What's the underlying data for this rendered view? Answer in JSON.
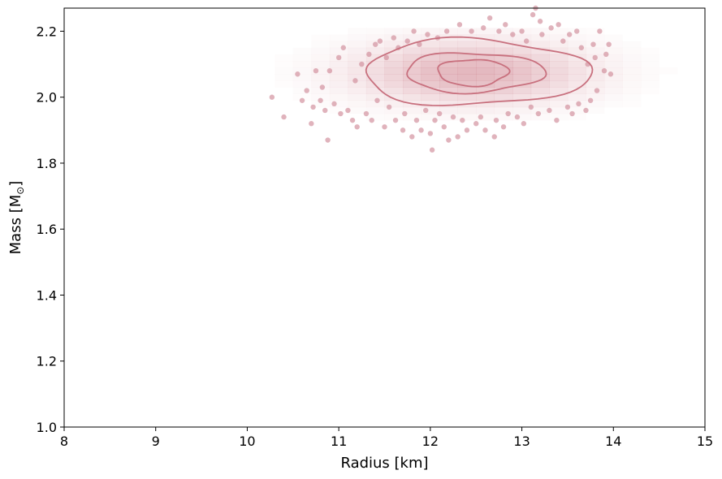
{
  "chart_data": {
    "type": "scatter",
    "title": "",
    "xlabel": "Radius [km]",
    "ylabel_text": "Mass [M",
    "ylabel_subscript": "⊙",
    "ylabel_close": "]",
    "xlim": [
      8,
      15
    ],
    "ylim": [
      1.0,
      2.27
    ],
    "x_ticks": [
      8,
      9,
      10,
      11,
      12,
      13,
      14,
      15
    ],
    "x_tick_labels": [
      "8",
      "9",
      "10",
      "11",
      "12",
      "13",
      "14",
      "15"
    ],
    "y_ticks": [
      1.0,
      1.2,
      1.4,
      1.6,
      1.8,
      2.0,
      2.2
    ],
    "y_tick_labels": [
      "1.0",
      "1.2",
      "1.4",
      "1.6",
      "1.8",
      "2.0",
      "2.2"
    ],
    "grid": false,
    "colors": {
      "points": "#d08a98",
      "contour": "#c8707e",
      "hist": "#c8707e"
    },
    "density_center": {
      "radius": 12.45,
      "mass": 2.075
    },
    "contour_levels": [
      {
        "level": "inner",
        "radius_halfwidth": 0.38,
        "mass_halfwidth": 0.04
      },
      {
        "level": "middle",
        "radius_halfwidth": 0.75,
        "mass_halfwidth": 0.06
      },
      {
        "level": "outer",
        "radius_halfwidth": 1.22,
        "mass_halfwidth": 0.1
      }
    ],
    "histogram_bins": {
      "radius_start": 10.3,
      "radius_end": 14.7,
      "radius_step": 0.2,
      "mass_start": 1.93,
      "mass_end": 2.21,
      "mass_step": 0.02
    },
    "samples": [
      {
        "x": 10.27,
        "y": 2.0
      },
      {
        "x": 10.4,
        "y": 1.94
      },
      {
        "x": 10.55,
        "y": 2.07
      },
      {
        "x": 10.6,
        "y": 1.99
      },
      {
        "x": 10.65,
        "y": 2.02
      },
      {
        "x": 10.7,
        "y": 1.92
      },
      {
        "x": 10.72,
        "y": 1.97
      },
      {
        "x": 10.75,
        "y": 2.08
      },
      {
        "x": 10.8,
        "y": 1.99
      },
      {
        "x": 10.82,
        "y": 2.03
      },
      {
        "x": 10.85,
        "y": 1.96
      },
      {
        "x": 10.88,
        "y": 1.87
      },
      {
        "x": 10.9,
        "y": 2.08
      },
      {
        "x": 10.95,
        "y": 1.98
      },
      {
        "x": 11.0,
        "y": 2.12
      },
      {
        "x": 11.02,
        "y": 1.95
      },
      {
        "x": 11.05,
        "y": 2.15
      },
      {
        "x": 11.1,
        "y": 1.96
      },
      {
        "x": 11.15,
        "y": 1.93
      },
      {
        "x": 11.18,
        "y": 2.05
      },
      {
        "x": 11.2,
        "y": 1.91
      },
      {
        "x": 11.25,
        "y": 2.1
      },
      {
        "x": 11.3,
        "y": 1.95
      },
      {
        "x": 11.33,
        "y": 2.13
      },
      {
        "x": 11.36,
        "y": 1.93
      },
      {
        "x": 11.4,
        "y": 2.16
      },
      {
        "x": 11.42,
        "y": 1.99
      },
      {
        "x": 11.45,
        "y": 2.17
      },
      {
        "x": 11.5,
        "y": 1.91
      },
      {
        "x": 11.52,
        "y": 2.12
      },
      {
        "x": 11.55,
        "y": 1.97
      },
      {
        "x": 11.6,
        "y": 2.18
      },
      {
        "x": 11.62,
        "y": 1.93
      },
      {
        "x": 11.65,
        "y": 2.15
      },
      {
        "x": 11.7,
        "y": 1.9
      },
      {
        "x": 11.72,
        "y": 1.95
      },
      {
        "x": 11.75,
        "y": 2.17
      },
      {
        "x": 11.8,
        "y": 1.88
      },
      {
        "x": 11.82,
        "y": 2.2
      },
      {
        "x": 11.85,
        "y": 1.93
      },
      {
        "x": 11.88,
        "y": 2.16
      },
      {
        "x": 11.9,
        "y": 1.9
      },
      {
        "x": 11.95,
        "y": 1.96
      },
      {
        "x": 11.97,
        "y": 2.19
      },
      {
        "x": 12.0,
        "y": 1.89
      },
      {
        "x": 12.02,
        "y": 1.84
      },
      {
        "x": 12.05,
        "y": 1.93
      },
      {
        "x": 12.08,
        "y": 2.18
      },
      {
        "x": 12.1,
        "y": 1.95
      },
      {
        "x": 12.15,
        "y": 1.91
      },
      {
        "x": 12.18,
        "y": 2.2
      },
      {
        "x": 12.2,
        "y": 1.87
      },
      {
        "x": 12.25,
        "y": 1.94
      },
      {
        "x": 12.3,
        "y": 1.88
      },
      {
        "x": 12.32,
        "y": 2.22
      },
      {
        "x": 12.35,
        "y": 1.93
      },
      {
        "x": 12.4,
        "y": 1.9
      },
      {
        "x": 12.45,
        "y": 2.2
      },
      {
        "x": 12.5,
        "y": 1.92
      },
      {
        "x": 12.55,
        "y": 1.94
      },
      {
        "x": 12.58,
        "y": 2.21
      },
      {
        "x": 12.6,
        "y": 1.9
      },
      {
        "x": 12.65,
        "y": 2.24
      },
      {
        "x": 12.7,
        "y": 1.88
      },
      {
        "x": 12.72,
        "y": 1.93
      },
      {
        "x": 12.75,
        "y": 2.2
      },
      {
        "x": 12.8,
        "y": 1.91
      },
      {
        "x": 12.82,
        "y": 2.22
      },
      {
        "x": 12.85,
        "y": 1.95
      },
      {
        "x": 12.9,
        "y": 2.19
      },
      {
        "x": 12.95,
        "y": 1.94
      },
      {
        "x": 13.0,
        "y": 2.2
      },
      {
        "x": 13.02,
        "y": 1.92
      },
      {
        "x": 13.05,
        "y": 2.17
      },
      {
        "x": 13.1,
        "y": 1.97
      },
      {
        "x": 13.12,
        "y": 2.25
      },
      {
        "x": 13.15,
        "y": 2.27
      },
      {
        "x": 13.18,
        "y": 1.95
      },
      {
        "x": 13.2,
        "y": 2.23
      },
      {
        "x": 13.22,
        "y": 2.19
      },
      {
        "x": 13.3,
        "y": 1.96
      },
      {
        "x": 13.32,
        "y": 2.21
      },
      {
        "x": 13.38,
        "y": 1.93
      },
      {
        "x": 13.4,
        "y": 2.22
      },
      {
        "x": 13.45,
        "y": 2.17
      },
      {
        "x": 13.5,
        "y": 1.97
      },
      {
        "x": 13.52,
        "y": 2.19
      },
      {
        "x": 13.55,
        "y": 1.95
      },
      {
        "x": 13.6,
        "y": 2.2
      },
      {
        "x": 13.62,
        "y": 1.98
      },
      {
        "x": 13.65,
        "y": 2.15
      },
      {
        "x": 13.7,
        "y": 1.96
      },
      {
        "x": 13.72,
        "y": 2.1
      },
      {
        "x": 13.75,
        "y": 1.99
      },
      {
        "x": 13.78,
        "y": 2.16
      },
      {
        "x": 13.8,
        "y": 2.12
      },
      {
        "x": 13.82,
        "y": 2.02
      },
      {
        "x": 13.85,
        "y": 2.2
      },
      {
        "x": 13.9,
        "y": 2.08
      },
      {
        "x": 13.92,
        "y": 2.13
      },
      {
        "x": 13.95,
        "y": 2.16
      },
      {
        "x": 13.97,
        "y": 2.07
      }
    ]
  }
}
